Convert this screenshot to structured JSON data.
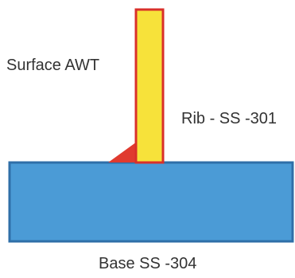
{
  "labels": {
    "weld": "Surface AWT",
    "rib": "Rib - SS -301",
    "base": "Base SS -304"
  },
  "colors": {
    "base_fill": "#4b9bd6",
    "base_stroke": "#2f6fa8",
    "rib_fill": "#f7e23a",
    "rib_stroke": "#d9302a",
    "weld_fill": "#e03a2f",
    "text": "#333333"
  }
}
